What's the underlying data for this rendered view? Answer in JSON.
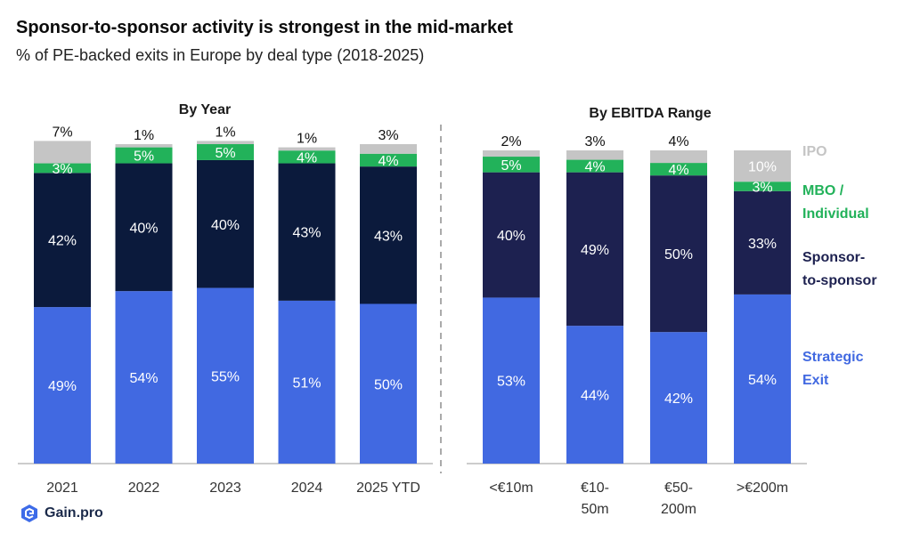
{
  "header": {
    "title": "Sponsor-to-sponsor activity is strongest in the mid-market",
    "subtitle": "% of PE-backed exits in Europe by deal type (2018-2025)"
  },
  "brand": {
    "name": "Gain.pro",
    "icon": "gain-pro-logo-icon"
  },
  "colors": {
    "strategic": "#4169e1",
    "sponsor_year": "#0b1a3c",
    "sponsor_ebitda": "#1d2150",
    "mbo": "#22b25a",
    "ipo": "#c5c5c5",
    "divider": "#aaaaaa"
  },
  "chart_data": [
    {
      "type": "bar",
      "stacked": true,
      "title": "By Year",
      "categories": [
        "2021",
        "2022",
        "2023",
        "2024",
        "2025 YTD"
      ],
      "series": [
        {
          "name": "Strategic Exit",
          "values": [
            49,
            54,
            55,
            51,
            50
          ],
          "labels": [
            "49%",
            "54%",
            "55%",
            "51%",
            "50%"
          ]
        },
        {
          "name": "Sponsor-to-sponsor",
          "values": [
            42,
            40,
            40,
            43,
            43
          ],
          "labels": [
            "42%",
            "40%",
            "40%",
            "43%",
            "43%"
          ]
        },
        {
          "name": "MBO / Individual",
          "values": [
            3,
            5,
            5,
            4,
            4
          ],
          "labels": [
            "3%",
            "5%",
            "5%",
            "4%",
            "4%"
          ]
        },
        {
          "name": "IPO",
          "values": [
            7,
            1,
            1,
            1,
            3
          ],
          "labels": [
            "7%",
            "1%",
            "1%",
            "1%",
            "3%"
          ]
        }
      ],
      "ylim": [
        0,
        100
      ]
    },
    {
      "type": "bar",
      "stacked": true,
      "title": "By EBITDA Range",
      "categories": [
        "<€10m",
        "€10-50m",
        "€50-200m",
        ">€200m"
      ],
      "category_lines": [
        [
          "<€10m"
        ],
        [
          "€10-",
          "50m"
        ],
        [
          "€50-",
          "200m"
        ],
        [
          ">€200m"
        ]
      ],
      "series": [
        {
          "name": "Strategic Exit",
          "values": [
            53,
            44,
            42,
            54
          ],
          "labels": [
            "53%",
            "44%",
            "42%",
            "54%"
          ]
        },
        {
          "name": "Sponsor-to-sponsor",
          "values": [
            40,
            49,
            50,
            33
          ],
          "labels": [
            "40%",
            "49%",
            "50%",
            "33%"
          ]
        },
        {
          "name": "MBO / Individual",
          "values": [
            5,
            4,
            4,
            3
          ],
          "labels": [
            "5%",
            "4%",
            "4%",
            "3%"
          ]
        },
        {
          "name": "IPO",
          "values": [
            2,
            3,
            4,
            10
          ],
          "labels": [
            "2%",
            "3%",
            "4%",
            "10%"
          ]
        }
      ],
      "ylim": [
        0,
        100
      ],
      "legend": {
        "placement": "right",
        "entries": [
          {
            "lines": [
              "IPO"
            ],
            "series": "IPO"
          },
          {
            "lines": [
              "MBO /",
              "Individual"
            ],
            "series": "MBO / Individual"
          },
          {
            "lines": [
              "Sponsor-",
              "to-sponsor"
            ],
            "series": "Sponsor-to-sponsor"
          },
          {
            "lines": [
              "Strategic",
              "Exit"
            ],
            "series": "Strategic Exit"
          }
        ]
      }
    }
  ]
}
